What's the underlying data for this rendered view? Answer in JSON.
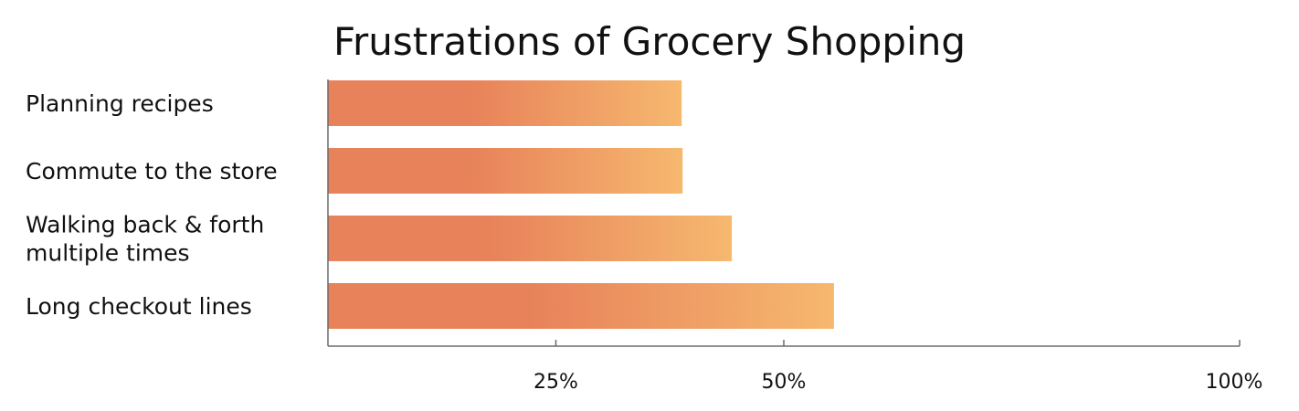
{
  "chart_data": {
    "type": "bar",
    "orientation": "horizontal",
    "title": "Frustrations of Grocery Shopping",
    "xlabel": "",
    "ylabel": "",
    "categories": [
      [
        "Planning recipes"
      ],
      [
        "Commute to the store"
      ],
      [
        "Walking back & forth",
        "multiple times"
      ],
      [
        "Long checkout lines"
      ]
    ],
    "values": [
      38.8,
      38.9,
      44.3,
      55.5
    ],
    "xlim": [
      0,
      100
    ],
    "ticks": [
      {
        "value": 25,
        "label": "25%"
      },
      {
        "value": 50,
        "label": "50%"
      },
      {
        "value": 100,
        "label": "100%"
      }
    ],
    "grid": false,
    "legend": "none",
    "colors": {
      "bar_start": "#e8825a",
      "bar_mid": "#e8825a",
      "bar_end": "#f6b86f",
      "axis": "#6b6b6b",
      "text": "#111111"
    }
  }
}
